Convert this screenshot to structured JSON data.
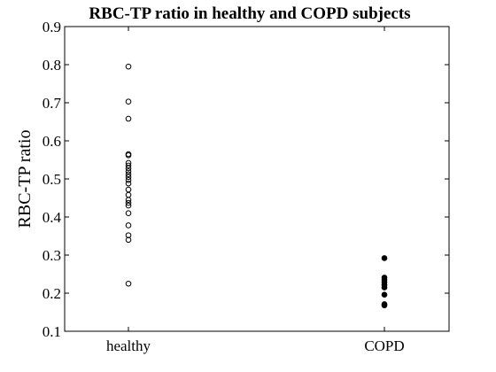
{
  "chart_data": {
    "type": "scatter",
    "title": "RBC-TP ratio in healthy and COPD subjects",
    "xlabel": "",
    "ylabel": "RBC-TP ratio",
    "categories": [
      "healthy",
      "COPD"
    ],
    "ylim": [
      0.1,
      0.9
    ],
    "yticks": [
      "0.1",
      "0.2",
      "0.3",
      "0.4",
      "0.5",
      "0.6",
      "0.7",
      "0.8",
      "0.9"
    ],
    "grid": false,
    "series": [
      {
        "category": "healthy",
        "marker": "open-circle",
        "values": [
          0.795,
          0.703,
          0.658,
          0.565,
          0.562,
          0.542,
          0.535,
          0.528,
          0.52,
          0.512,
          0.505,
          0.497,
          0.488,
          0.472,
          0.458,
          0.445,
          0.437,
          0.43,
          0.41,
          0.378,
          0.352,
          0.34,
          0.225
        ]
      },
      {
        "category": "COPD",
        "marker": "filled-circle",
        "values": [
          0.292,
          0.241,
          0.236,
          0.229,
          0.222,
          0.215,
          0.196,
          0.171,
          0.168
        ]
      }
    ]
  }
}
